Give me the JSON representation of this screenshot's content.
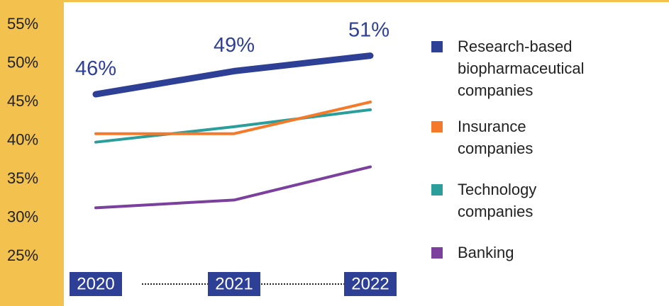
{
  "chart_data": {
    "type": "line",
    "categories": [
      "2020",
      "2021",
      "2022"
    ],
    "series": [
      {
        "name": "Research-based biopharmaceutical companies",
        "color": "#2e3f96",
        "values": [
          46,
          49,
          51
        ],
        "value_labels": [
          "46%",
          "49%",
          "51%"
        ]
      },
      {
        "name": "Insurance companies",
        "color": "#f47a2a",
        "values": [
          40.9,
          40.9,
          45
        ]
      },
      {
        "name": "Technology companies",
        "color": "#2a9e9a",
        "values": [
          39.8,
          41.8,
          44
        ]
      },
      {
        "name": "Banking",
        "color": "#7b3f9e",
        "values": [
          31.3,
          32.3,
          36.6
        ]
      }
    ],
    "ylim": [
      25,
      55
    ],
    "yticks": [
      {
        "value": 25,
        "label": "25%"
      },
      {
        "value": 30,
        "label": "30%"
      },
      {
        "value": 35,
        "label": "35%"
      },
      {
        "value": 40,
        "label": "40%"
      },
      {
        "value": 45,
        "label": "45%"
      },
      {
        "value": 50,
        "label": "50%"
      },
      {
        "value": 55,
        "label": "55%"
      }
    ],
    "grid": false
  }
}
